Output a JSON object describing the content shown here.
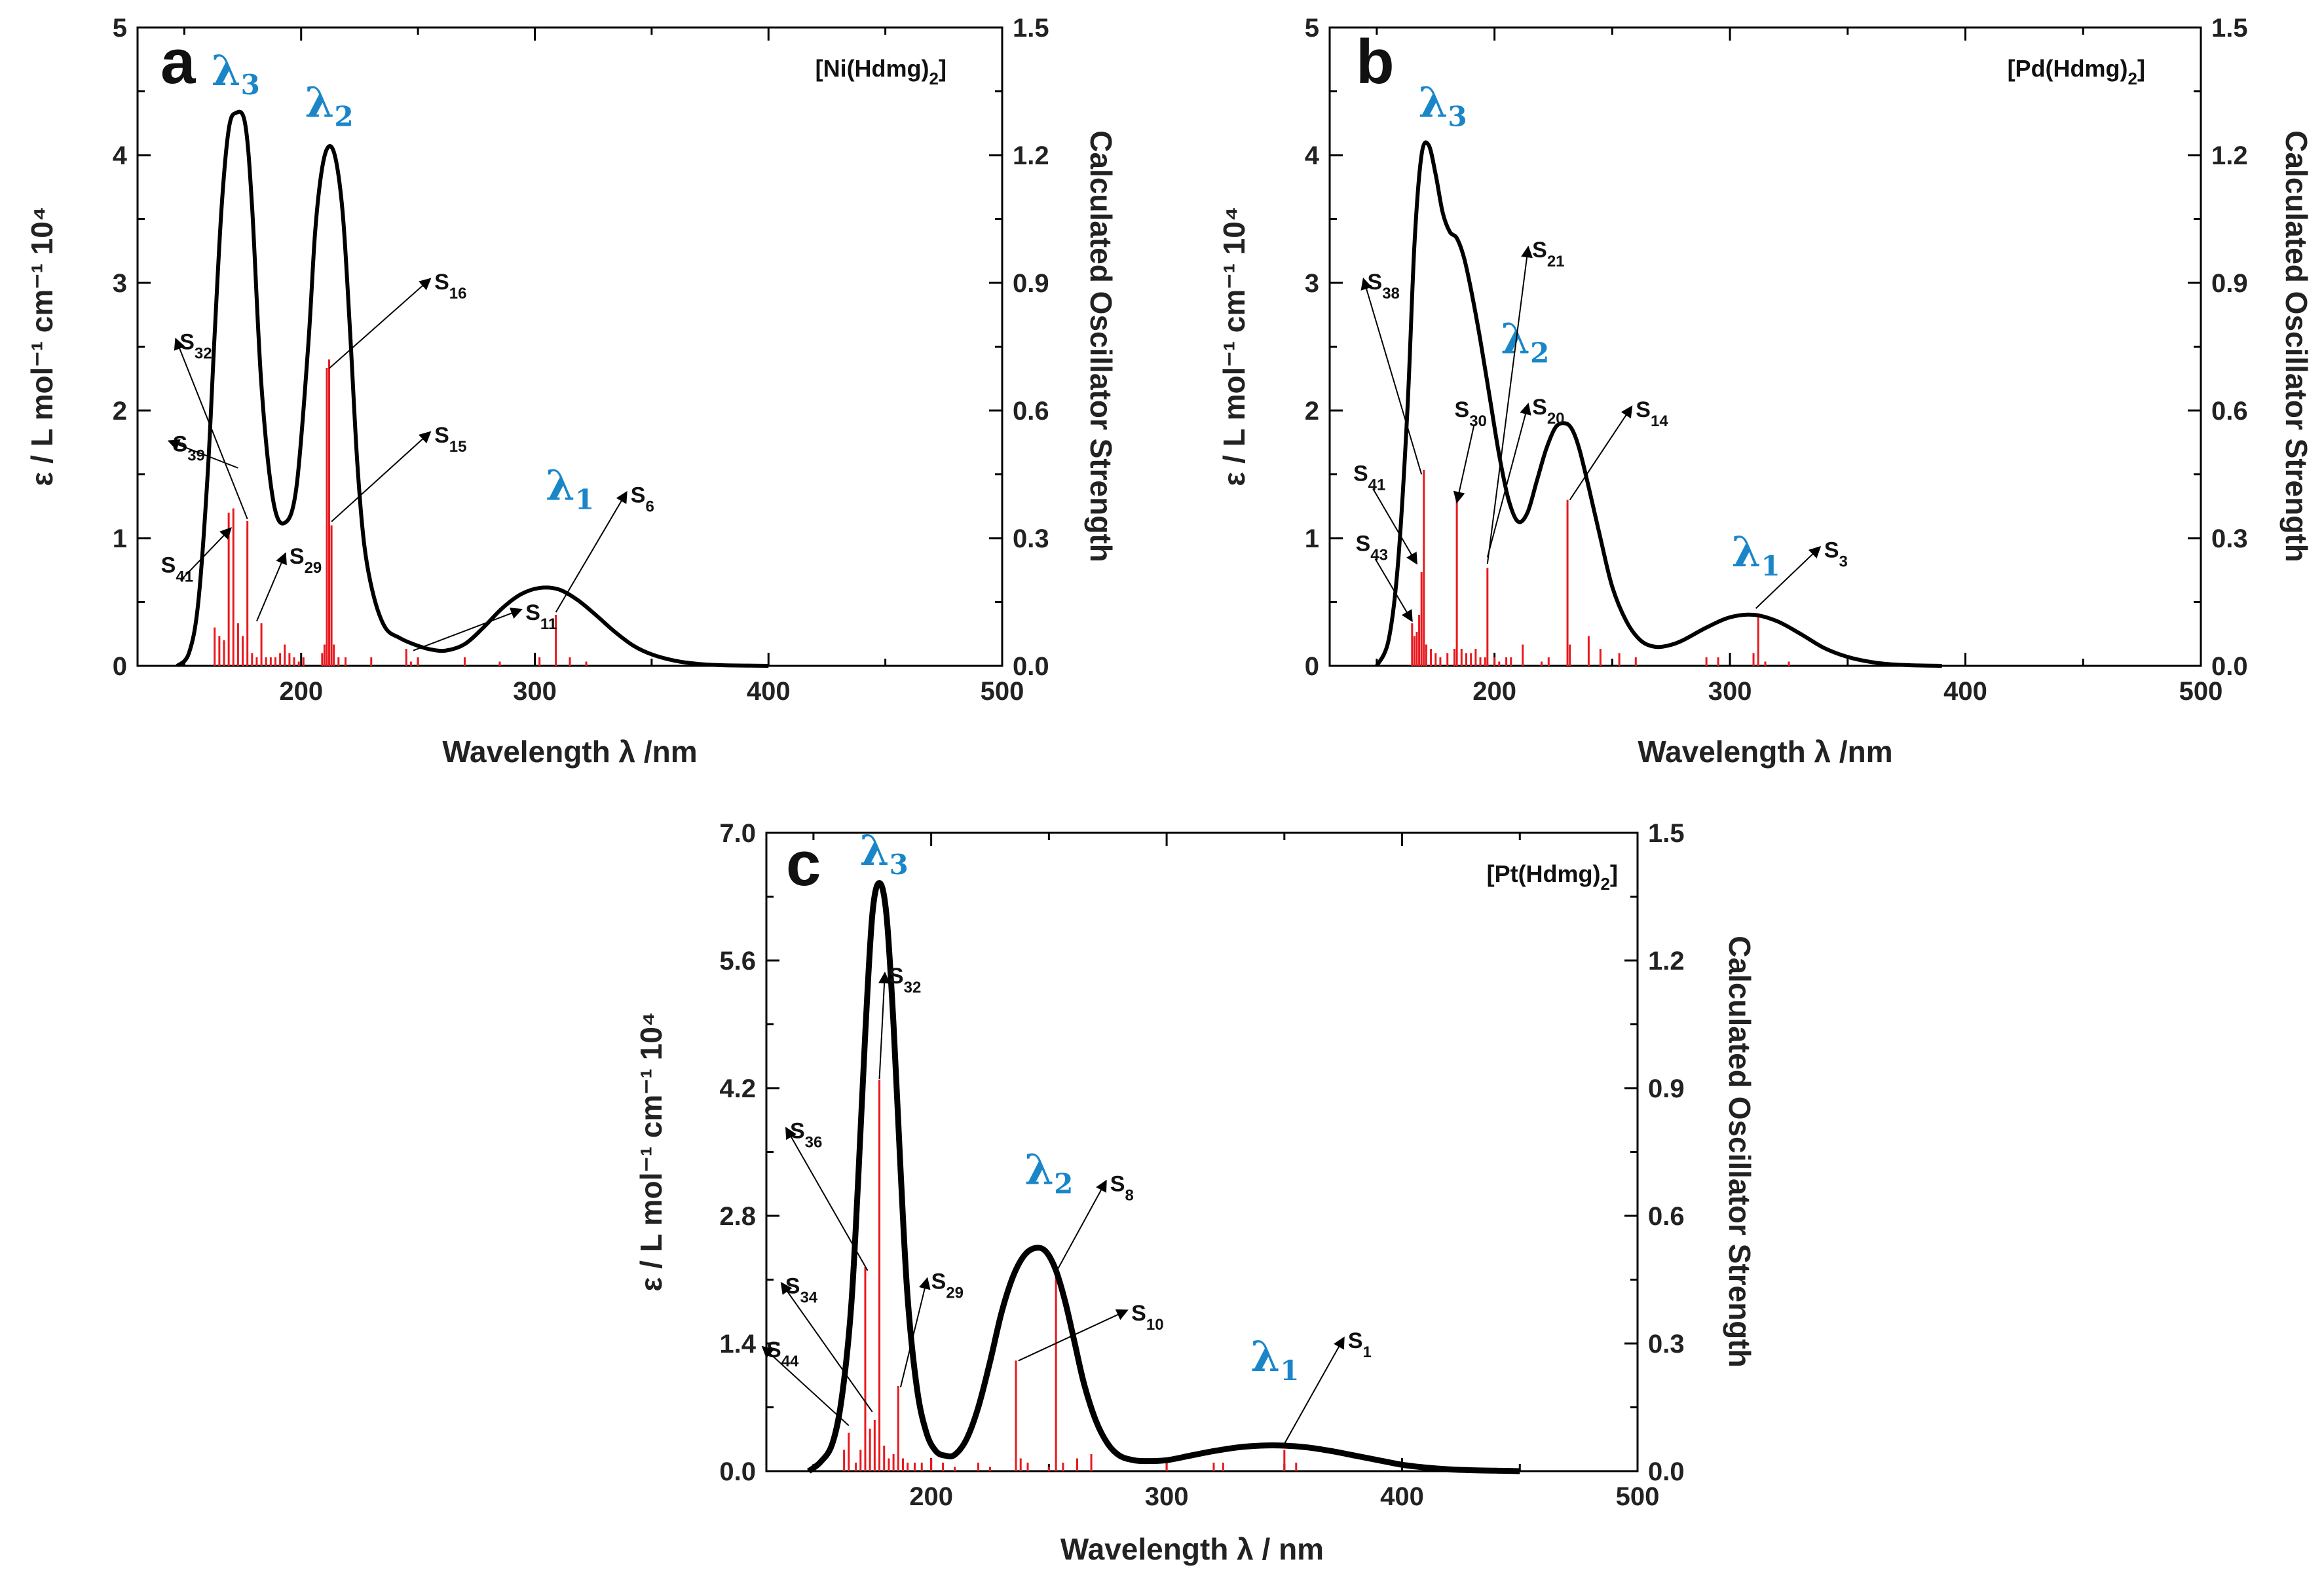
{
  "figure": {
    "colors": {
      "spectrum": "#000000",
      "sticks": "#e8191e",
      "peak_labels": "#1a86c8",
      "axes": "#000000"
    }
  },
  "chart_data": [
    {
      "id": "a",
      "type": "line",
      "panel_label": "a",
      "compound_label": "[Ni(Hdmg)2]",
      "compound_parts": {
        "pre": "[Ni(Hdmg)",
        "sub": "2",
        "post": "]"
      },
      "xlabel": "Wavelength  λ /nm",
      "ylabel": "ε / L mol⁻¹ cm⁻¹ 10⁴",
      "y2label": "Calculated Oscillator Strength",
      "xlim": [
        130,
        500
      ],
      "ylim": [
        0,
        5
      ],
      "y2lim": [
        0,
        1.5
      ],
      "xticks": [
        200,
        300,
        400,
        500
      ],
      "yticks": [
        0,
        1,
        2,
        3,
        4,
        5
      ],
      "y2ticks": [
        "0.0",
        "0.3",
        "0.6",
        "0.9",
        "1.2",
        "1.5"
      ],
      "spectrum": {
        "x": [
          147,
          152,
          156,
          160,
          163,
          166,
          169,
          172,
          176,
          179,
          183,
          188,
          193,
          198,
          203,
          206,
          209,
          212,
          215,
          218,
          221,
          224,
          227,
          231,
          236,
          242,
          248,
          255,
          262,
          270,
          278,
          286,
          294,
          302,
          310,
          318,
          326,
          334,
          342,
          350,
          360,
          370,
          380,
          390,
          400
        ],
        "y": [
          0,
          0.1,
          0.5,
          1.5,
          2.6,
          3.6,
          4.2,
          4.33,
          4.25,
          3.6,
          2.2,
          1.3,
          1.12,
          1.4,
          2.5,
          3.4,
          3.9,
          4.07,
          3.95,
          3.5,
          2.6,
          1.6,
          0.95,
          0.55,
          0.3,
          0.22,
          0.17,
          0.13,
          0.12,
          0.17,
          0.3,
          0.45,
          0.56,
          0.61,
          0.6,
          0.52,
          0.4,
          0.27,
          0.16,
          0.09,
          0.04,
          0.015,
          0.005,
          0.002,
          0
        ]
      },
      "oscillator": {
        "x": [
          163,
          165,
          167,
          169,
          171,
          173,
          175,
          177,
          179,
          181,
          183,
          185,
          187,
          189,
          191,
          193,
          195,
          197,
          199,
          201,
          209,
          210,
          211,
          212,
          213,
          214,
          216,
          219,
          230,
          245,
          247,
          250,
          270,
          285,
          302,
          309,
          315,
          322
        ],
        "f": [
          0.09,
          0.07,
          0.06,
          0.36,
          0.37,
          0.1,
          0.07,
          0.34,
          0.03,
          0.02,
          0.1,
          0.02,
          0.02,
          0.02,
          0.03,
          0.05,
          0.03,
          0.02,
          0.01,
          0.02,
          0.03,
          0.05,
          0.7,
          0.72,
          0.33,
          0.05,
          0.02,
          0.02,
          0.02,
          0.04,
          0.01,
          0.02,
          0.02,
          0.01,
          0.02,
          0.12,
          0.02,
          0.01
        ]
      },
      "peak_labels": [
        {
          "label": "λ",
          "sub": "3",
          "x": 172,
          "y": 4.55
        },
        {
          "label": "λ",
          "sub": "2",
          "x": 212,
          "y": 4.3
        },
        {
          "label": "λ",
          "sub": "1",
          "x": 315,
          "y": 1.3
        }
      ],
      "state_labels": [
        {
          "name": "S",
          "sub": "32",
          "lx": 148,
          "ly": 2.48,
          "tx": 177,
          "ty": 1.15,
          "arrow": "text"
        },
        {
          "name": "S",
          "sub": "39",
          "lx": 145,
          "ly": 1.68,
          "tx": 173,
          "ty": 1.55,
          "arrow": "text"
        },
        {
          "name": "S",
          "sub": "41",
          "lx": 140,
          "ly": 0.73,
          "tx": 170,
          "ty": 1.08,
          "arrow": "line"
        },
        {
          "name": "S",
          "sub": "29",
          "lx": 195,
          "ly": 0.8,
          "tx": 181,
          "ty": 0.35,
          "arrow": "text"
        },
        {
          "name": "S",
          "sub": "16",
          "lx": 257,
          "ly": 2.95,
          "tx": 212,
          "ty": 2.33,
          "arrow": "text"
        },
        {
          "name": "S",
          "sub": "15",
          "lx": 257,
          "ly": 1.75,
          "tx": 213,
          "ty": 1.13,
          "arrow": "text"
        },
        {
          "name": "S",
          "sub": "11",
          "lx": 296,
          "ly": 0.36,
          "tx": 248,
          "ty": 0.12,
          "arrow": "text"
        },
        {
          "name": "S",
          "sub": "6",
          "lx": 341,
          "ly": 1.28,
          "tx": 309,
          "ty": 0.42,
          "arrow": "text"
        }
      ]
    },
    {
      "id": "b",
      "type": "line",
      "panel_label": "b",
      "compound_label": "[Pd(Hdmg)2]",
      "compound_parts": {
        "pre": "[Pd(Hdmg)",
        "sub": "2",
        "post": "]"
      },
      "xlabel": "Wavelength  λ /nm",
      "ylabel": "ε / L mol⁻¹ cm⁻¹ 10⁴",
      "y2label": "Calculated Oscillator Strength",
      "xlim": [
        130,
        500
      ],
      "ylim": [
        0,
        5
      ],
      "y2lim": [
        0,
        1.5
      ],
      "xticks": [
        200,
        300,
        400,
        500
      ],
      "yticks": [
        0,
        1,
        2,
        3,
        4,
        5
      ],
      "y2ticks": [
        "0.0",
        "0.3",
        "0.6",
        "0.9",
        "1.2",
        "1.5"
      ],
      "spectrum": {
        "x": [
          150,
          155,
          159,
          163,
          166,
          169,
          172,
          175,
          178,
          181,
          184,
          187,
          190,
          194,
          198,
          202,
          206,
          210,
          214,
          218,
          222,
          226,
          230,
          233,
          236,
          240,
          245,
          250,
          256,
          262,
          268,
          274,
          280,
          290,
          300,
          310,
          320,
          330,
          340,
          350,
          360,
          370,
          380,
          390
        ],
        "y": [
          0,
          0.2,
          0.8,
          2.0,
          3.3,
          4.0,
          4.08,
          3.85,
          3.55,
          3.4,
          3.35,
          3.2,
          2.95,
          2.55,
          2.1,
          1.65,
          1.3,
          1.13,
          1.2,
          1.45,
          1.7,
          1.87,
          1.9,
          1.85,
          1.7,
          1.4,
          1.0,
          0.62,
          0.35,
          0.2,
          0.15,
          0.16,
          0.2,
          0.3,
          0.38,
          0.4,
          0.35,
          0.25,
          0.14,
          0.07,
          0.03,
          0.01,
          0.003,
          0
        ]
      },
      "oscillator": {
        "x": [
          165,
          166,
          167,
          168,
          169,
          170,
          171,
          173,
          175,
          177,
          180,
          183,
          184,
          186,
          188,
          190,
          192,
          194,
          196,
          197,
          200,
          202,
          205,
          207,
          212,
          220,
          223,
          231,
          232,
          240,
          245,
          253,
          260,
          290,
          295,
          310,
          312,
          315,
          325
        ],
        "f": [
          0.1,
          0.07,
          0.08,
          0.12,
          0.22,
          0.46,
          0.05,
          0.04,
          0.03,
          0.02,
          0.03,
          0.04,
          0.39,
          0.04,
          0.03,
          0.03,
          0.04,
          0.02,
          0.02,
          0.23,
          0.02,
          0.01,
          0.02,
          0.02,
          0.05,
          0.01,
          0.02,
          0.39,
          0.05,
          0.07,
          0.04,
          0.03,
          0.02,
          0.02,
          0.02,
          0.03,
          0.12,
          0.01,
          0.01
        ]
      },
      "peak_labels": [
        {
          "label": "λ",
          "sub": "3",
          "x": 178,
          "y": 4.3
        },
        {
          "label": "λ",
          "sub": "2",
          "x": 213,
          "y": 2.45
        },
        {
          "label": "λ",
          "sub": "1",
          "x": 311,
          "y": 0.78
        }
      ],
      "state_labels": [
        {
          "name": "S",
          "sub": "38",
          "lx": 146,
          "ly": 2.95,
          "tx": 169,
          "ty": 1.5,
          "arrow": "text"
        },
        {
          "name": "S",
          "sub": "30",
          "lx": 183,
          "ly": 1.95,
          "tx": 184,
          "ty": 1.28,
          "arrow": "line"
        },
        {
          "name": "S",
          "sub": "41",
          "lx": 140,
          "ly": 1.45,
          "tx": 167,
          "ty": 0.8,
          "arrow": "line"
        },
        {
          "name": "S",
          "sub": "43",
          "lx": 141,
          "ly": 0.9,
          "tx": 165,
          "ty": 0.35,
          "arrow": "line"
        },
        {
          "name": "S",
          "sub": "21",
          "lx": 216,
          "ly": 3.2,
          "tx": 197,
          "ty": 0.8,
          "arrow": "text"
        },
        {
          "name": "S",
          "sub": "20",
          "lx": 216,
          "ly": 1.97,
          "tx": 197,
          "ty": 0.85,
          "arrow": "text"
        },
        {
          "name": "S",
          "sub": "14",
          "lx": 260,
          "ly": 1.95,
          "tx": 232,
          "ty": 1.3,
          "arrow": "text"
        },
        {
          "name": "S",
          "sub": "3",
          "lx": 340,
          "ly": 0.85,
          "tx": 311,
          "ty": 0.45,
          "arrow": "text"
        }
      ]
    },
    {
      "id": "c",
      "type": "line",
      "panel_label": "c",
      "compound_label": "[Pt(Hdmg)2]",
      "compound_parts": {
        "pre": "[Pt(Hdmg)",
        "sub": "2",
        "post": "]"
      },
      "xlabel": "Wavelength λ / nm",
      "ylabel": "ε / L mol⁻¹ cm⁻¹ 10⁴",
      "y2label": "Calculated Oscillator Strength",
      "xlim": [
        130,
        500
      ],
      "ylim": [
        0,
        7
      ],
      "y2lim": [
        0,
        1.5
      ],
      "xticks": [
        200,
        300,
        400,
        500
      ],
      "yticks": [
        "0.0",
        "1.4",
        "2.8",
        "4.2",
        "5.6",
        "7.0"
      ],
      "y2ticks": [
        "0.0",
        "0.3",
        "0.6",
        "0.9",
        "1.2",
        "1.5"
      ],
      "spectrum": {
        "x": [
          148,
          153,
          158,
          162,
          166,
          169,
          172,
          175,
          178,
          181,
          184,
          187,
          190,
          194,
          198,
          202,
          206,
          210,
          215,
          220,
          225,
          230,
          235,
          240,
          245,
          249,
          253,
          257,
          261,
          265,
          270,
          275,
          280,
          286,
          292,
          300,
          310,
          320,
          330,
          340,
          350,
          360,
          370,
          380,
          390,
          400,
          410,
          420,
          430,
          440,
          450
        ],
        "y": [
          0,
          0.1,
          0.3,
          0.8,
          1.8,
          3.2,
          4.8,
          6.1,
          6.45,
          6.1,
          4.9,
          3.3,
          1.9,
          0.9,
          0.42,
          0.22,
          0.17,
          0.18,
          0.35,
          0.7,
          1.2,
          1.75,
          2.15,
          2.38,
          2.45,
          2.4,
          2.2,
          1.85,
          1.4,
          0.95,
          0.55,
          0.3,
          0.17,
          0.12,
          0.11,
          0.12,
          0.17,
          0.22,
          0.26,
          0.28,
          0.28,
          0.26,
          0.22,
          0.17,
          0.12,
          0.07,
          0.04,
          0.02,
          0.01,
          0.005,
          0
        ]
      },
      "oscillator": {
        "x": [
          163,
          165,
          168,
          170,
          172,
          174,
          176,
          178,
          180,
          182,
          184,
          186,
          188,
          190,
          193,
          196,
          200,
          205,
          210,
          220,
          225,
          236,
          238,
          241,
          250,
          253,
          256,
          262,
          268,
          300,
          320,
          324,
          350,
          355
        ],
        "f": [
          0.05,
          0.09,
          0.02,
          0.05,
          0.48,
          0.1,
          0.12,
          0.92,
          0.06,
          0.03,
          0.04,
          0.2,
          0.03,
          0.02,
          0.02,
          0.02,
          0.03,
          0.02,
          0.01,
          0.02,
          0.01,
          0.26,
          0.03,
          0.02,
          0.01,
          0.47,
          0.02,
          0.03,
          0.04,
          0.02,
          0.02,
          0.02,
          0.05,
          0.02
        ]
      },
      "peak_labels": [
        {
          "label": "λ",
          "sub": "3",
          "x": 180,
          "y": 6.65
        },
        {
          "label": "λ",
          "sub": "2",
          "x": 250,
          "y": 3.15
        },
        {
          "label": "λ",
          "sub": "1",
          "x": 346,
          "y": 1.1
        }
      ],
      "state_labels": [
        {
          "name": "S",
          "sub": "32",
          "lx": 182,
          "ly": 5.35,
          "tx": 178,
          "ty": 4.3,
          "arrow": "text"
        },
        {
          "name": "S",
          "sub": "36",
          "lx": 140,
          "ly": 3.65,
          "tx": 173,
          "ty": 2.2,
          "arrow": "text"
        },
        {
          "name": "S",
          "sub": "34",
          "lx": 138,
          "ly": 1.95,
          "tx": 175,
          "ty": 0.65,
          "arrow": "text"
        },
        {
          "name": "S",
          "sub": "44",
          "lx": 130,
          "ly": 1.25,
          "tx": 165,
          "ty": 0.5,
          "arrow": "text"
        },
        {
          "name": "S",
          "sub": "29",
          "lx": 200,
          "ly": 2.0,
          "tx": 187,
          "ty": 0.92,
          "arrow": "text"
        },
        {
          "name": "S",
          "sub": "8",
          "lx": 276,
          "ly": 3.07,
          "tx": 253,
          "ty": 2.18,
          "arrow": "text"
        },
        {
          "name": "S",
          "sub": "10",
          "lx": 285,
          "ly": 1.65,
          "tx": 237,
          "ty": 1.21,
          "arrow": "text"
        },
        {
          "name": "S",
          "sub": "1",
          "lx": 377,
          "ly": 1.35,
          "tx": 350,
          "ty": 0.3,
          "arrow": "text"
        }
      ]
    }
  ]
}
